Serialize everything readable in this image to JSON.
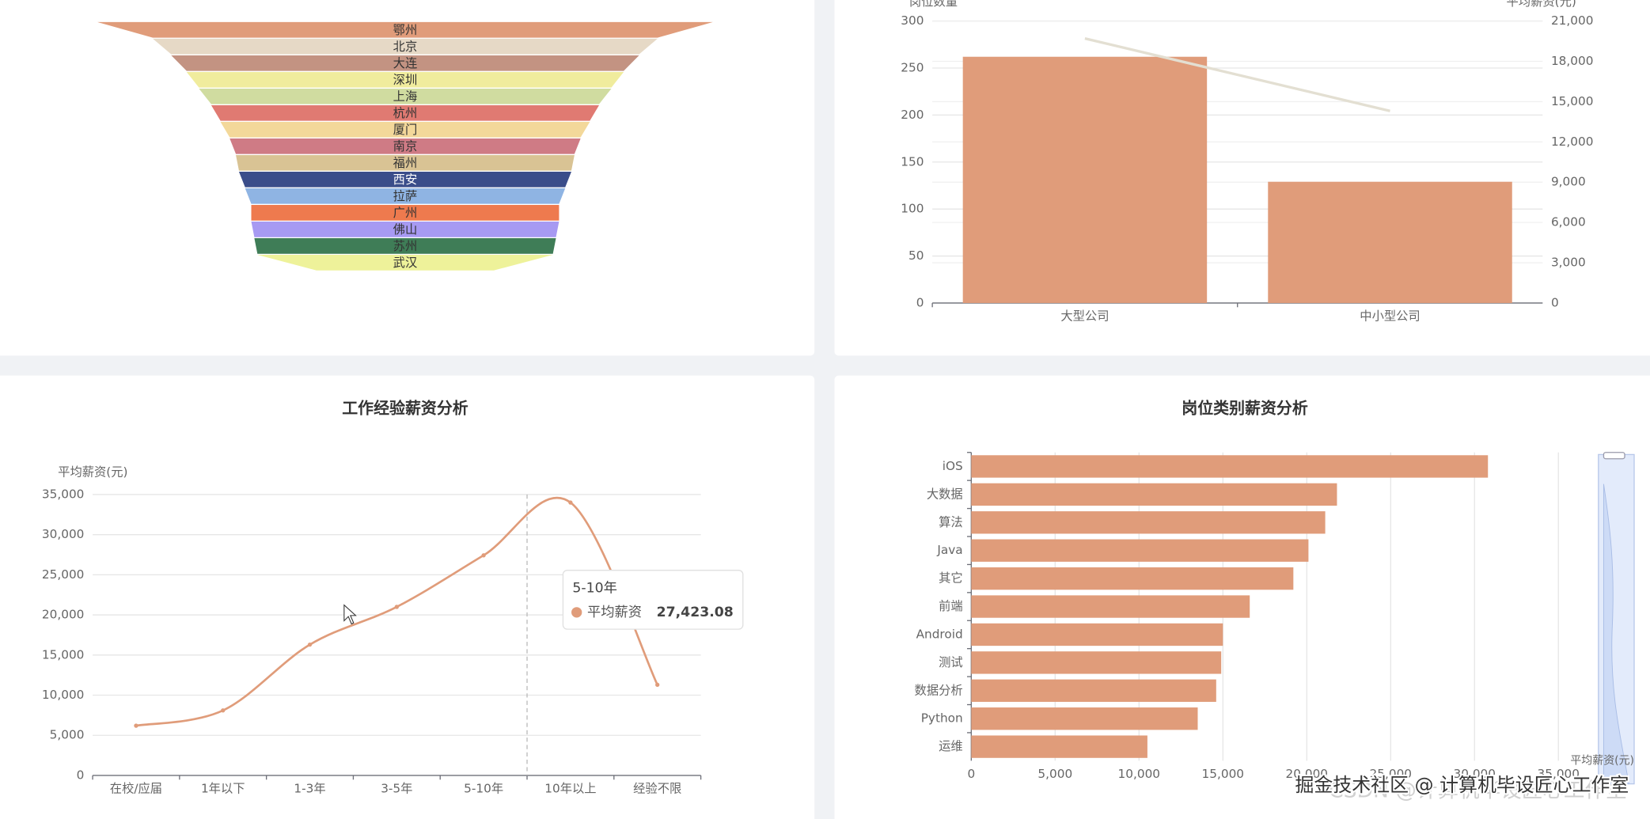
{
  "chart_data": [
    {
      "type": "funnel",
      "categories": [
        "鄂州",
        "北京",
        "大连",
        "深圳",
        "上海",
        "杭州",
        "厦门",
        "南京",
        "福州",
        "西安",
        "拉萨",
        "广州",
        "佛山",
        "苏州",
        "武汉"
      ],
      "values": [
        100,
        82,
        76,
        71,
        67,
        63,
        60,
        57,
        55,
        54,
        52,
        50,
        50,
        49,
        48
      ],
      "colors": [
        "#e09c7a",
        "#e6d9c6",
        "#c39382",
        "#f0ec9d",
        "#d0dca0",
        "#e07a72",
        "#f3d89a",
        "#cf7b85",
        "#d9c394",
        "#3a4d8a",
        "#8fb4e3",
        "#ee7a4e",
        "#a79af2",
        "#3f7d57",
        "#eef29a"
      ]
    },
    {
      "type": "bar",
      "ylabel": "岗位数量",
      "y2label": "平均薪资(元)",
      "categories": [
        "大型公司",
        "中小型公司"
      ],
      "series": [
        {
          "type": "bar",
          "color": "#e09c7a",
          "values": [
            262,
            129
          ]
        },
        {
          "type": "line",
          "axis": "y2",
          "color": "#e3dfd2",
          "values": [
            19700,
            14300
          ]
        }
      ],
      "ylim": [
        0,
        300
      ],
      "yticks": [
        0,
        50,
        100,
        150,
        200,
        250,
        300
      ],
      "y2lim": [
        0,
        21000
      ],
      "y2ticks": [
        0,
        {
          "value": 3000,
          "label": "3,000"
        },
        {
          "value": 6000,
          "label": "6,000"
        },
        {
          "value": 9000,
          "label": "9,000"
        },
        {
          "value": 12000,
          "label": "12,000"
        },
        {
          "value": 15000,
          "label": "15,000"
        },
        {
          "value": 18000,
          "label": "18,000"
        },
        {
          "value": 21000,
          "label": "21,000"
        }
      ],
      "grid": true
    },
    {
      "type": "line",
      "title": "工作经验薪资分析",
      "ylabel": "平均薪资(元)",
      "categories": [
        "在校/应届",
        "1年以下",
        "1-3年",
        "3-5年",
        "5-10年",
        "10年以上",
        "经验不限"
      ],
      "series": [
        {
          "name": "平均薪资",
          "color": "#e09c7a",
          "smooth": true,
          "values": [
            6200,
            8100,
            16300,
            21000,
            27423.08,
            34000,
            11300
          ]
        }
      ],
      "ylim": [
        0,
        35000
      ],
      "yticks": [
        0,
        {
          "value": 5000,
          "label": "5,000"
        },
        {
          "value": 10000,
          "label": "10,000"
        },
        {
          "value": 15000,
          "label": "15,000"
        },
        {
          "value": 20000,
          "label": "20,000"
        },
        {
          "value": 25000,
          "label": "25,000"
        },
        {
          "value": 30000,
          "label": "30,000"
        },
        {
          "value": 35000,
          "label": "35,000"
        }
      ],
      "grid": true,
      "tooltip": {
        "category": "5-10年",
        "label": "27,423.08"
      }
    },
    {
      "type": "bar",
      "horizontal": true,
      "title": "岗位类别薪资分析",
      "xlabel": "平均薪资(元)",
      "categories": [
        "iOS",
        "大数据",
        "算法",
        "Java",
        "其它",
        "前端",
        "Android",
        "测试",
        "数据分析",
        "Python",
        "运维"
      ],
      "values": [
        30800,
        21800,
        21100,
        20100,
        19200,
        16600,
        15000,
        14900,
        14600,
        13500,
        10500
      ],
      "color": "#e09c7a",
      "xlim": [
        0,
        35000
      ],
      "xticks": [
        0,
        {
          "value": 5000,
          "label": "5,000"
        },
        {
          "value": 10000,
          "label": "10,000"
        },
        {
          "value": 15000,
          "label": "15,000"
        },
        {
          "value": 20000,
          "label": "20,000"
        },
        {
          "value": 25000,
          "label": "25,000"
        },
        {
          "value": 30000,
          "label": "30,000"
        },
        {
          "value": 35000,
          "label": "35,000"
        }
      ],
      "grid": true
    }
  ],
  "watermark": [
    "CSDN @计算机毕设匠心工作室",
    "掘金技术社区 @ 计算机毕设匠心工作室"
  ]
}
